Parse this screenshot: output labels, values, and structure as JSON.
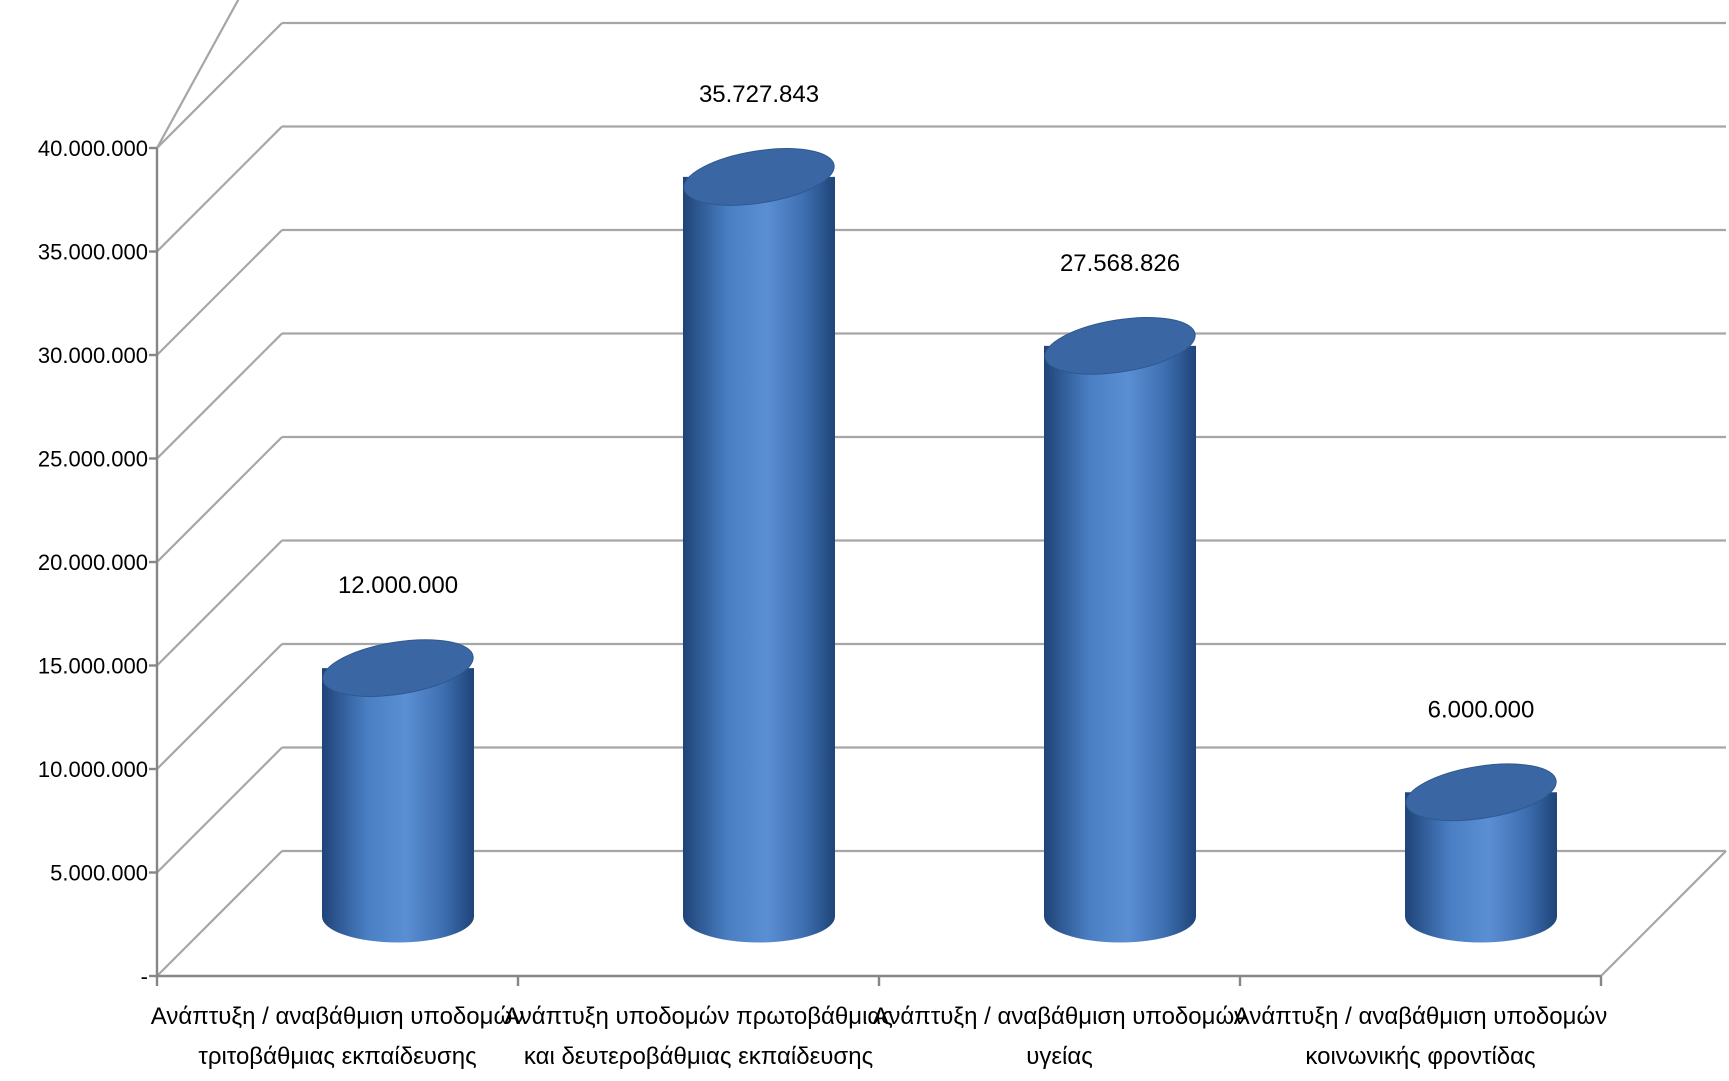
{
  "chart_data": {
    "type": "bar",
    "style": "3d-cylinder",
    "title": "",
    "xlabel": "",
    "ylabel": "",
    "ylim": [
      0,
      40000000
    ],
    "ytick_values": [
      0,
      5000000,
      10000000,
      15000000,
      20000000,
      25000000,
      30000000,
      35000000,
      40000000
    ],
    "ytick_labels": [
      "-",
      "5.000.000",
      "10.000.000",
      "15.000.000",
      "20.000.000",
      "25.000.000",
      "30.000.000",
      "35.000.000",
      "40.000.000"
    ],
    "categories": [
      [
        "Ανάπτυξη / αναβάθμιση υποδομών",
        "τριτοβάθμιας εκπαίδευσης"
      ],
      [
        "Ανάπτυξη υποδομών πρωτοβάθμιας",
        "και δευτεροβάθμιας εκπαίδευσης"
      ],
      [
        "Ανάπτυξη / αναβάθμιση υποδομών",
        "υγείας"
      ],
      [
        "Ανάπτυξη / αναβάθμιση υποδομών",
        "κοινωνικής φροντίδας"
      ]
    ],
    "values": [
      12000000,
      35727843,
      27568826,
      6000000
    ],
    "data_labels": [
      "12.000.000",
      "35.727.843",
      "27.568.826",
      "6.000.000"
    ],
    "grid": true,
    "legend": "none",
    "colors": {
      "bar_mid": "#5b8fd4",
      "bar_edge": "#1f4478",
      "bar_top": "#3a67a3",
      "grid": "#a6a6a6",
      "axis": "#868686"
    }
  }
}
